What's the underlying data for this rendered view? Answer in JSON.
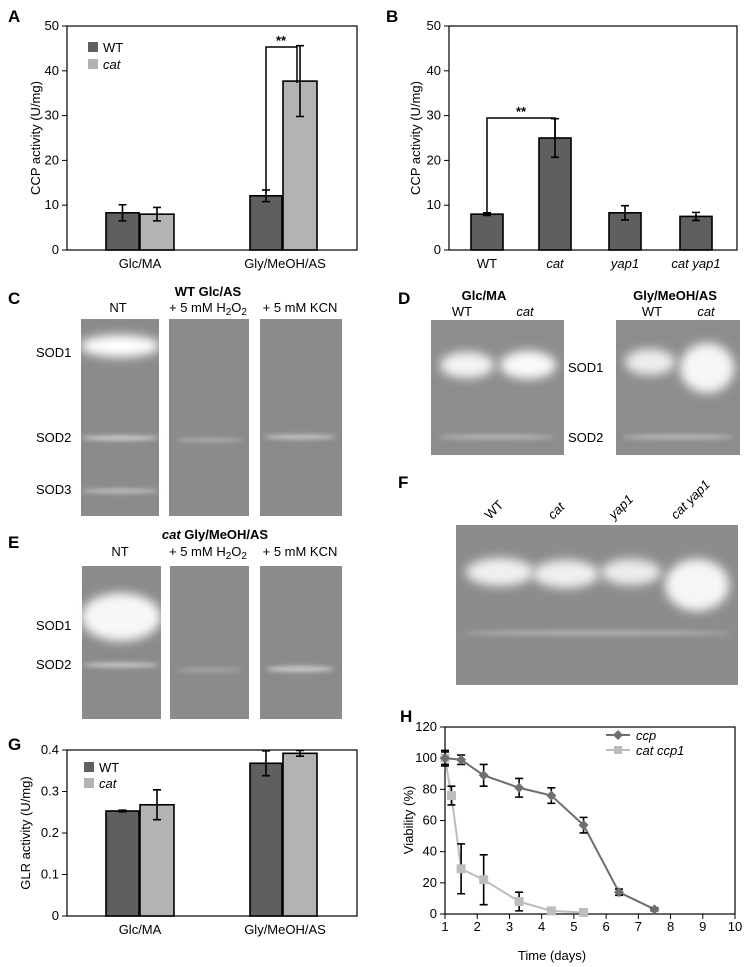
{
  "panels": {
    "A": "A",
    "B": "B",
    "C": "C",
    "D": "D",
    "E": "E",
    "F": "F",
    "G": "G",
    "H": "H"
  },
  "colors": {
    "wt": "#5f5f5f",
    "cat": "#b3b3b3",
    "ccp": "#6e6e6e",
    "cat_ccp1": "#bdbdbd"
  },
  "chart_data": [
    {
      "id": "A",
      "type": "bar",
      "ylabel": "CCP activity (U/mg)",
      "ylim": [
        0,
        50
      ],
      "yticks": [
        0,
        10,
        20,
        30,
        40,
        50
      ],
      "categories": [
        "Glc/MA",
        "Gly/MeOH/AS"
      ],
      "series": [
        {
          "name": "WT",
          "values": [
            8.3,
            12.1
          ],
          "errors": [
            1.8,
            1.3
          ]
        },
        {
          "name": "cat",
          "values": [
            8.0,
            37.7
          ],
          "errors": [
            1.5,
            7.9
          ]
        }
      ],
      "significance": "**"
    },
    {
      "id": "B",
      "type": "bar",
      "ylabel": "CCP activity (U/mg)",
      "ylim": [
        0,
        50
      ],
      "yticks": [
        0,
        10,
        20,
        30,
        40,
        50
      ],
      "categories": [
        "WT",
        "cat",
        "yap1",
        "cat yap1"
      ],
      "series": [
        {
          "name": "",
          "values": [
            8.0,
            25.0,
            8.3,
            7.5
          ],
          "errors": [
            0.3,
            4.3,
            1.6,
            0.9
          ]
        }
      ],
      "significance": "**"
    },
    {
      "id": "G",
      "type": "bar",
      "ylabel": "GLR activity (U/mg)",
      "ylim": [
        0,
        0.4
      ],
      "yticks": [
        "0",
        "0.1",
        "0.2",
        "0.3",
        "0.4"
      ],
      "categories": [
        "Glc/MA",
        "Gly/MeOH/AS"
      ],
      "series": [
        {
          "name": "WT",
          "values": [
            0.253,
            0.368
          ],
          "errors": [
            0.002,
            0.03
          ]
        },
        {
          "name": "cat",
          "values": [
            0.268,
            0.392
          ],
          "errors": [
            0.036,
            0.007
          ]
        }
      ]
    },
    {
      "id": "H",
      "type": "line",
      "xlabel": "Time (days)",
      "ylabel": "Viability (%)",
      "xlim": [
        1,
        10
      ],
      "ylim": [
        0,
        120
      ],
      "xticks": [
        1,
        2,
        3,
        4,
        5,
        6,
        7,
        8,
        9,
        10
      ],
      "yticks": [
        0,
        20,
        40,
        60,
        80,
        100,
        120
      ],
      "series": [
        {
          "name": "ccp",
          "x": [
            1.0,
            1.5,
            2.2,
            3.3,
            4.3,
            5.3,
            6.4,
            7.5
          ],
          "y": [
            100,
            99,
            89,
            81,
            76,
            57,
            14,
            3
          ],
          "errors": [
            4,
            3,
            7,
            6,
            5,
            5,
            2,
            1
          ]
        },
        {
          "name": "cat ccp1",
          "x": [
            1.0,
            1.2,
            1.5,
            2.2,
            3.3,
            4.3,
            5.3
          ],
          "y": [
            100,
            76,
            29,
            22,
            8,
            2,
            1
          ],
          "errors": [
            5,
            6,
            16,
            16,
            6,
            1,
            1
          ]
        }
      ]
    }
  ],
  "gels": {
    "C": {
      "title": "WT Glc/AS",
      "lanes": [
        "NT",
        "+ 5 mM H2O2",
        "+ 5 mM KCN"
      ],
      "bands": [
        "SOD1",
        "SOD2",
        "SOD3"
      ]
    },
    "D": {
      "groups": [
        "Glc/MA",
        "Gly/MeOH/AS"
      ],
      "lanes": [
        "WT",
        "cat",
        "WT",
        "cat"
      ],
      "bands": [
        "SOD1",
        "SOD2"
      ]
    },
    "E": {
      "title": "cat Gly/MeOH/AS",
      "lanes": [
        "NT",
        "+ 5 mM H2O2",
        "+ 5 mM KCN"
      ],
      "bands": [
        "SOD1",
        "SOD2"
      ]
    },
    "F": {
      "lanes": [
        "WT",
        "cat",
        "yap1",
        "cat yap1"
      ]
    }
  }
}
